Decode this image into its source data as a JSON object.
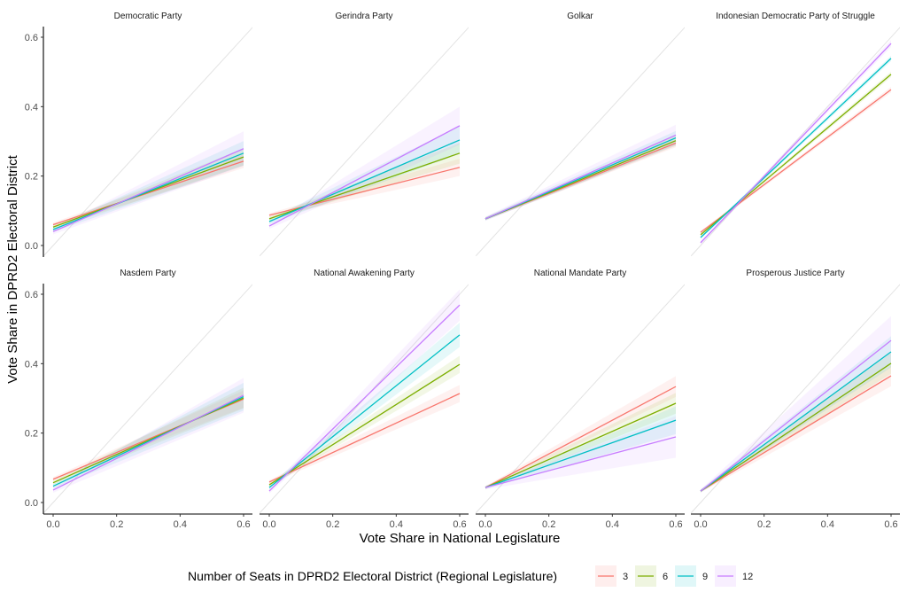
{
  "chart_data": {
    "type": "line",
    "xlabel": "Vote Share in National Legislature",
    "ylabel": "Vote Share in DPRD2 Electoral District",
    "xlim": [
      -0.03,
      0.63
    ],
    "ylim": [
      -0.03,
      0.63
    ],
    "x_ticks": [
      "0.0",
      "0.2",
      "0.4",
      "0.6"
    ],
    "y_ticks": [
      "0.0",
      "0.2",
      "0.4",
      "0.6"
    ],
    "x_tick_values": [
      0,
      0.2,
      0.4,
      0.6
    ],
    "y_tick_values": [
      0,
      0.2,
      0.4,
      0.6
    ],
    "reference_line": "y = x",
    "grid": false,
    "legend": {
      "title": "Number of Seats in DPRD2 Electoral District (Regional Legislature)",
      "position": "bottom",
      "entries": [
        {
          "label": "3",
          "color": "#F8766D"
        },
        {
          "label": "6",
          "color": "#7CAE00"
        },
        {
          "label": "9",
          "color": "#00BFC4"
        },
        {
          "label": "12",
          "color": "#C77CFF"
        }
      ]
    },
    "x": [
      0,
      0.6
    ],
    "panels": [
      {
        "title": "Democratic Party",
        "series": [
          {
            "name": "3",
            "values": [
              0.06,
              0.243
            ],
            "ci_halfwidth": [
              0.006,
              0.02
            ]
          },
          {
            "name": "6",
            "values": [
              0.053,
              0.255
            ],
            "ci_halfwidth": [
              0.006,
              0.025
            ]
          },
          {
            "name": "9",
            "values": [
              0.046,
              0.266
            ],
            "ci_halfwidth": [
              0.007,
              0.035
            ]
          },
          {
            "name": "12",
            "values": [
              0.04,
              0.279
            ],
            "ci_halfwidth": [
              0.008,
              0.05
            ]
          }
        ]
      },
      {
        "title": "Gerindra Party",
        "series": [
          {
            "name": "3",
            "values": [
              0.087,
              0.225
            ],
            "ci_halfwidth": [
              0.006,
              0.025
            ]
          },
          {
            "name": "6",
            "values": [
              0.077,
              0.266
            ],
            "ci_halfwidth": [
              0.006,
              0.03
            ]
          },
          {
            "name": "9",
            "values": [
              0.069,
              0.304
            ],
            "ci_halfwidth": [
              0.007,
              0.04
            ]
          },
          {
            "name": "12",
            "values": [
              0.056,
              0.345
            ],
            "ci_halfwidth": [
              0.008,
              0.055
            ]
          }
        ]
      },
      {
        "title": "Golkar",
        "series": [
          {
            "name": "3",
            "values": [
              0.077,
              0.295
            ],
            "ci_halfwidth": [
              0.004,
              0.012
            ]
          },
          {
            "name": "6",
            "values": [
              0.077,
              0.302
            ],
            "ci_halfwidth": [
              0.004,
              0.015
            ]
          },
          {
            "name": "9",
            "values": [
              0.077,
              0.31
            ],
            "ci_halfwidth": [
              0.005,
              0.02
            ]
          },
          {
            "name": "12",
            "values": [
              0.077,
              0.318
            ],
            "ci_halfwidth": [
              0.006,
              0.03
            ]
          }
        ]
      },
      {
        "title": "Indonesian Democratic Party of Struggle",
        "series": [
          {
            "name": "3",
            "values": [
              0.038,
              0.449
            ],
            "ci_halfwidth": [
              0.004,
              0.008
            ]
          },
          {
            "name": "6",
            "values": [
              0.031,
              0.493
            ],
            "ci_halfwidth": [
              0.004,
              0.008
            ]
          },
          {
            "name": "9",
            "values": [
              0.023,
              0.539
            ],
            "ci_halfwidth": [
              0.004,
              0.008
            ]
          },
          {
            "name": "12",
            "values": [
              0.008,
              0.582
            ],
            "ci_halfwidth": [
              0.005,
              0.01
            ]
          }
        ]
      },
      {
        "title": "Nasdem Party",
        "series": [
          {
            "name": "3",
            "values": [
              0.067,
              0.298
            ],
            "ci_halfwidth": [
              0.006,
              0.025
            ]
          },
          {
            "name": "6",
            "values": [
              0.057,
              0.301
            ],
            "ci_halfwidth": [
              0.006,
              0.03
            ]
          },
          {
            "name": "9",
            "values": [
              0.047,
              0.305
            ],
            "ci_halfwidth": [
              0.007,
              0.04
            ]
          },
          {
            "name": "12",
            "values": [
              0.036,
              0.309
            ],
            "ci_halfwidth": [
              0.008,
              0.05
            ]
          }
        ]
      },
      {
        "title": "National Awakening Party",
        "series": [
          {
            "name": "3",
            "values": [
              0.059,
              0.314
            ],
            "ci_halfwidth": [
              0.005,
              0.025
            ]
          },
          {
            "name": "6",
            "values": [
              0.051,
              0.398
            ],
            "ci_halfwidth": [
              0.005,
              0.025
            ]
          },
          {
            "name": "9",
            "values": [
              0.043,
              0.483
            ],
            "ci_halfwidth": [
              0.006,
              0.035
            ]
          },
          {
            "name": "12",
            "values": [
              0.033,
              0.569
            ],
            "ci_halfwidth": [
              0.007,
              0.045
            ]
          }
        ]
      },
      {
        "title": "National Mandate Party",
        "series": [
          {
            "name": "3",
            "values": [
              0.043,
              0.334
            ],
            "ci_halfwidth": [
              0.004,
              0.03
            ]
          },
          {
            "name": "6",
            "values": [
              0.043,
              0.286
            ],
            "ci_halfwidth": [
              0.004,
              0.03
            ]
          },
          {
            "name": "9",
            "values": [
              0.043,
              0.237
            ],
            "ci_halfwidth": [
              0.004,
              0.04
            ]
          },
          {
            "name": "12",
            "values": [
              0.043,
              0.189
            ],
            "ci_halfwidth": [
              0.005,
              0.06
            ]
          }
        ]
      },
      {
        "title": "Prosperous Justice Party",
        "series": [
          {
            "name": "3",
            "values": [
              0.033,
              0.365
            ],
            "ci_halfwidth": [
              0.004,
              0.03
            ]
          },
          {
            "name": "6",
            "values": [
              0.033,
              0.401
            ],
            "ci_halfwidth": [
              0.004,
              0.03
            ]
          },
          {
            "name": "9",
            "values": [
              0.033,
              0.434
            ],
            "ci_halfwidth": [
              0.004,
              0.045
            ]
          },
          {
            "name": "12",
            "values": [
              0.033,
              0.467
            ],
            "ci_halfwidth": [
              0.005,
              0.07
            ]
          }
        ]
      }
    ]
  }
}
